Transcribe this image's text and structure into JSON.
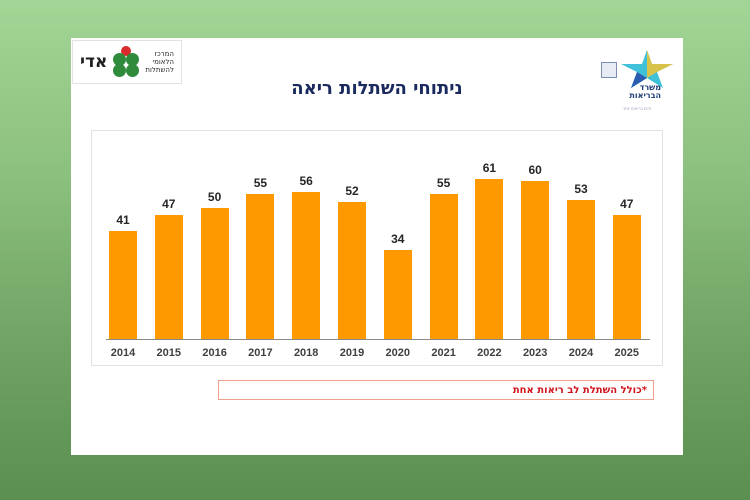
{
  "background": {
    "top_color": "#a3d596",
    "bottom_color": "#5a8f4f"
  },
  "logos": {
    "left": {
      "name_word": "אדי",
      "center_lines": [
        "המרכז",
        "הלאומי",
        "להשתלות"
      ]
    },
    "right": {
      "ministry_lines": [
        "משרד",
        "הבריאות"
      ],
      "tagline": "לחיים בריאים יותר",
      "footer": "חיים בריאים יותר"
    }
  },
  "slide": {
    "title": "ניתוחי השתלות ריאה",
    "footnote": "*כולל השתלת לב ריאות אחת"
  },
  "chart_data": {
    "type": "bar",
    "title": "ניתוחי השתלות ריאה",
    "categories": [
      "2014",
      "2015",
      "2016",
      "2017",
      "2018",
      "2019",
      "2020",
      "2021",
      "2022",
      "2023",
      "2024",
      "2025"
    ],
    "values": [
      41,
      47,
      50,
      55,
      56,
      52,
      34,
      55,
      61,
      60,
      53,
      47
    ],
    "xlabel": "",
    "ylabel": "",
    "ylim": [
      0,
      70
    ],
    "grid": false,
    "legend": null,
    "data_labels": true,
    "bar_color": "#ff9900",
    "footnote": "*כולל השתלת לב ריאות אחת"
  }
}
